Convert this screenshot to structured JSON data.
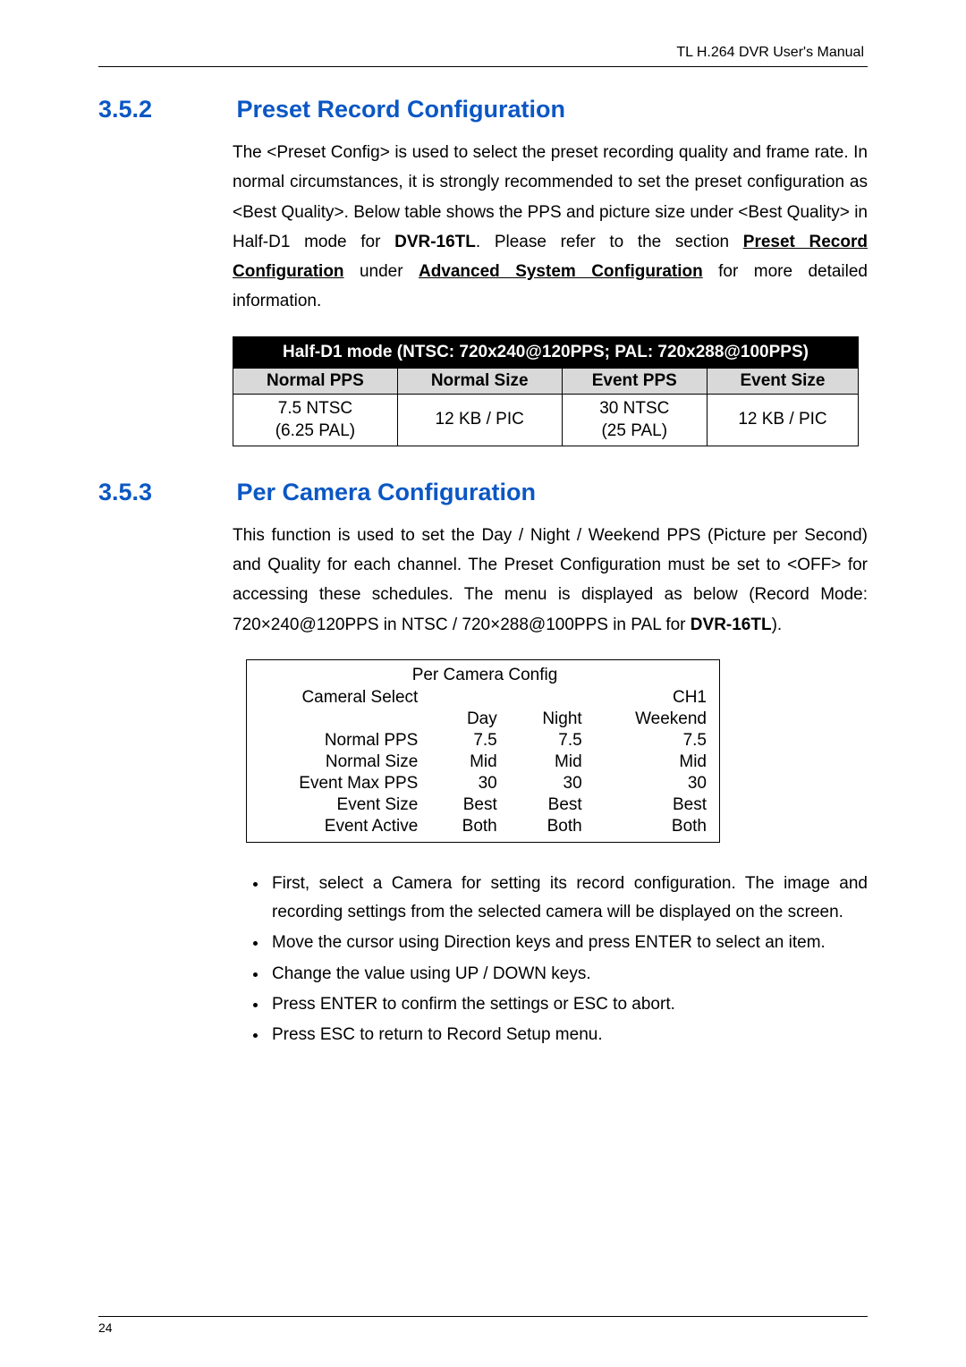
{
  "header_text": "TL H.264 DVR User's Manual",
  "section1": {
    "num": "3.5.2",
    "title": "Preset Record Configuration",
    "par_prefix": "The <Preset Config> is used to select the preset recording quality and frame rate. In normal circumstances, it is strongly recommended to set the preset configuration as <Best Quality>. Below table shows the PPS and picture size under <Best Quality> in Half-D1 mode for ",
    "par_bold1": "DVR-16TL",
    "par_mid1": ". Please refer to the section ",
    "par_ul1": "Preset Record Configuration",
    "par_mid2": " under ",
    "par_ul2": "Advanced System Configuration",
    "par_suffix": " for more detailed information."
  },
  "table1": {
    "header": "Half-D1 mode (NTSC: 720x240@120PPS; PAL: 720x288@100PPS)",
    "cols": [
      "Normal PPS",
      "Normal Size",
      "Event PPS",
      "Event Size"
    ],
    "row": {
      "c1a": "7.5 NTSC",
      "c1b": "(6.25 PAL)",
      "c2": "12 KB / PIC",
      "c3a": "30 NTSC",
      "c3b": "(25 PAL)",
      "c4": "12 KB / PIC"
    }
  },
  "section2": {
    "num": "3.5.3",
    "title": "Per Camera Configuration",
    "par_prefix": "This function is used to set the Day / Night / Weekend PPS (Picture per Second) and Quality for each channel. The Preset Configuration must be set to <OFF> for accessing these schedules. The menu is displayed as below (Record Mode: 720×240@120PPS in NTSC / 720×288@100PPS in PAL for ",
    "par_bold1": "DVR-16TL",
    "par_suffix": ")."
  },
  "table2": {
    "title": "Per Camera Config",
    "row_cam": {
      "label": "Cameral Select",
      "val": "CH1"
    },
    "headers": {
      "c1": "Day",
      "c2": "Night",
      "c3": "Weekend"
    },
    "rows": [
      {
        "label": "Normal PPS",
        "c1": "7.5",
        "c2": "7.5",
        "c3": "7.5"
      },
      {
        "label": "Normal Size",
        "c1": "Mid",
        "c2": "Mid",
        "c3": "Mid"
      },
      {
        "label": "Event Max PPS",
        "c1": "30",
        "c2": "30",
        "c3": "30"
      },
      {
        "label": "Event Size",
        "c1": "Best",
        "c2": "Best",
        "c3": "Best"
      },
      {
        "label": "Event Active",
        "c1": "Both",
        "c2": "Both",
        "c3": "Both"
      }
    ]
  },
  "bullets": [
    "First, select a Camera for setting its record configuration. The image and recording settings from the selected camera will be displayed on the screen.",
    "Move the cursor using Direction keys and press ENTER to select an item.",
    "Change the value using UP / DOWN keys.",
    "Press ENTER to confirm the settings or ESC to abort.",
    "Press ESC to return to Record Setup menu."
  ],
  "page_number": "24"
}
